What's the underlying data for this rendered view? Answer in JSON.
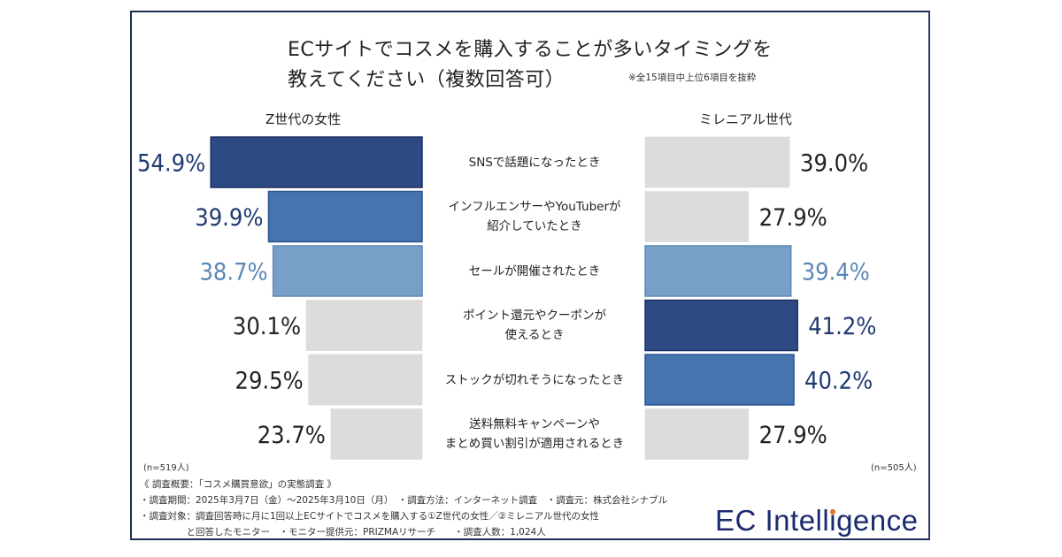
{
  "title": {
    "line1": "ECサイトでコスメを購入することが多いタイミングを",
    "line2": "教えてください（複数回答可）",
    "note": "※全15項目中上位6項目を抜粋"
  },
  "colors": {
    "navy": "#2e4a84",
    "blue": "#4674ae",
    "lightblue": "#76a0c8",
    "gray": "#dcdcdc",
    "text_dark": "#222222",
    "text_navy": "#1f3a73",
    "text_lightblue": "#5b87b6",
    "logo": "#1a2a6e",
    "logo_dot": "#e8731c"
  },
  "chart_data": {
    "type": "bar",
    "orientation": "horizontal-butterfly",
    "title": "ECサイトでコスメを購入することが多いタイミングを教えてください（複数回答可）",
    "unit": "%",
    "categories": [
      "SNSで話題になったとき",
      "インフルエンサーやYouTuberが\n紹介していたとき",
      "セールが開催されたとき",
      "ポイント還元やクーポンが\n使えるとき",
      "ストックが切れそうになったとき",
      "送料無料キャンペーンや\nまとめ買い割引が適用されるとき"
    ],
    "series": [
      {
        "name": "Z世代の女性",
        "side": "left",
        "n": "(n=519人)",
        "values": [
          54.9,
          39.9,
          38.7,
          30.1,
          29.5,
          23.7
        ],
        "labels": [
          "54.9%",
          "39.9%",
          "38.7%",
          "30.1%",
          "29.5%",
          "23.7%"
        ],
        "fill": [
          "navy",
          "blue",
          "lightblue",
          "gray",
          "gray",
          "gray"
        ]
      },
      {
        "name": "ミレニアル世代",
        "side": "right",
        "n": "(n=505人)",
        "values": [
          39.0,
          27.9,
          39.4,
          41.2,
          40.2,
          27.9
        ],
        "labels": [
          "39.0%",
          "27.9%",
          "39.4%",
          "41.2%",
          "40.2%",
          "27.9%"
        ],
        "fill": [
          "gray",
          "gray",
          "lightblue",
          "navy",
          "blue",
          "gray"
        ]
      }
    ],
    "xlim": [
      0,
      60
    ],
    "grid": false,
    "legend": "none"
  },
  "footer": {
    "heading": "《 調査概要：「コスメ購買意欲」の実態調査 》",
    "line1": "・調査期間：2025年3月7日（金）～2025年3月10日（月）　・調査方法：インターネット調査　・調査元：株式会社シナブル",
    "line2": "・調査対象：調査回答時に月に1回以上ECサイトでコスメを購入する①Z世代の女性／②ミレニアル世代の女性",
    "line3": "　　　　　と回答したモニター　・モニター提供元：PRIZMAリサーチ　　・調査人数：1,024人"
  },
  "logo": {
    "text_before": "EC Intell",
    "text_i": "i",
    "text_after": "gence"
  }
}
